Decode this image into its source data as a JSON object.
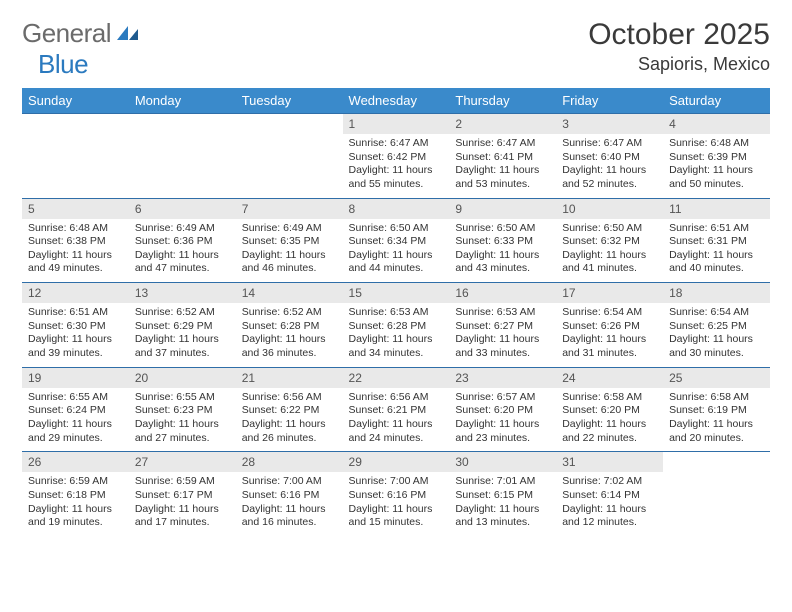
{
  "brand": {
    "textA": "General",
    "textB": "Blue",
    "color_gray": "#6b6b6b",
    "color_blue": "#2b7abf"
  },
  "title": {
    "month": "October 2025",
    "location": "Sapioris, Mexico"
  },
  "colors": {
    "header_bg": "#3a8acb",
    "header_text": "#ffffff",
    "divider": "#2f6ea8",
    "daynum_bg": "#e9e9e9"
  },
  "dayHeaders": [
    "Sunday",
    "Monday",
    "Tuesday",
    "Wednesday",
    "Thursday",
    "Friday",
    "Saturday"
  ],
  "weeks": [
    [
      null,
      null,
      null,
      {
        "n": "1",
        "sunrise": "6:47 AM",
        "sunset": "6:42 PM",
        "daylight": "11 hours and 55 minutes."
      },
      {
        "n": "2",
        "sunrise": "6:47 AM",
        "sunset": "6:41 PM",
        "daylight": "11 hours and 53 minutes."
      },
      {
        "n": "3",
        "sunrise": "6:47 AM",
        "sunset": "6:40 PM",
        "daylight": "11 hours and 52 minutes."
      },
      {
        "n": "4",
        "sunrise": "6:48 AM",
        "sunset": "6:39 PM",
        "daylight": "11 hours and 50 minutes."
      }
    ],
    [
      {
        "n": "5",
        "sunrise": "6:48 AM",
        "sunset": "6:38 PM",
        "daylight": "11 hours and 49 minutes."
      },
      {
        "n": "6",
        "sunrise": "6:49 AM",
        "sunset": "6:36 PM",
        "daylight": "11 hours and 47 minutes."
      },
      {
        "n": "7",
        "sunrise": "6:49 AM",
        "sunset": "6:35 PM",
        "daylight": "11 hours and 46 minutes."
      },
      {
        "n": "8",
        "sunrise": "6:50 AM",
        "sunset": "6:34 PM",
        "daylight": "11 hours and 44 minutes."
      },
      {
        "n": "9",
        "sunrise": "6:50 AM",
        "sunset": "6:33 PM",
        "daylight": "11 hours and 43 minutes."
      },
      {
        "n": "10",
        "sunrise": "6:50 AM",
        "sunset": "6:32 PM",
        "daylight": "11 hours and 41 minutes."
      },
      {
        "n": "11",
        "sunrise": "6:51 AM",
        "sunset": "6:31 PM",
        "daylight": "11 hours and 40 minutes."
      }
    ],
    [
      {
        "n": "12",
        "sunrise": "6:51 AM",
        "sunset": "6:30 PM",
        "daylight": "11 hours and 39 minutes."
      },
      {
        "n": "13",
        "sunrise": "6:52 AM",
        "sunset": "6:29 PM",
        "daylight": "11 hours and 37 minutes."
      },
      {
        "n": "14",
        "sunrise": "6:52 AM",
        "sunset": "6:28 PM",
        "daylight": "11 hours and 36 minutes."
      },
      {
        "n": "15",
        "sunrise": "6:53 AM",
        "sunset": "6:28 PM",
        "daylight": "11 hours and 34 minutes."
      },
      {
        "n": "16",
        "sunrise": "6:53 AM",
        "sunset": "6:27 PM",
        "daylight": "11 hours and 33 minutes."
      },
      {
        "n": "17",
        "sunrise": "6:54 AM",
        "sunset": "6:26 PM",
        "daylight": "11 hours and 31 minutes."
      },
      {
        "n": "18",
        "sunrise": "6:54 AM",
        "sunset": "6:25 PM",
        "daylight": "11 hours and 30 minutes."
      }
    ],
    [
      {
        "n": "19",
        "sunrise": "6:55 AM",
        "sunset": "6:24 PM",
        "daylight": "11 hours and 29 minutes."
      },
      {
        "n": "20",
        "sunrise": "6:55 AM",
        "sunset": "6:23 PM",
        "daylight": "11 hours and 27 minutes."
      },
      {
        "n": "21",
        "sunrise": "6:56 AM",
        "sunset": "6:22 PM",
        "daylight": "11 hours and 26 minutes."
      },
      {
        "n": "22",
        "sunrise": "6:56 AM",
        "sunset": "6:21 PM",
        "daylight": "11 hours and 24 minutes."
      },
      {
        "n": "23",
        "sunrise": "6:57 AM",
        "sunset": "6:20 PM",
        "daylight": "11 hours and 23 minutes."
      },
      {
        "n": "24",
        "sunrise": "6:58 AM",
        "sunset": "6:20 PM",
        "daylight": "11 hours and 22 minutes."
      },
      {
        "n": "25",
        "sunrise": "6:58 AM",
        "sunset": "6:19 PM",
        "daylight": "11 hours and 20 minutes."
      }
    ],
    [
      {
        "n": "26",
        "sunrise": "6:59 AM",
        "sunset": "6:18 PM",
        "daylight": "11 hours and 19 minutes."
      },
      {
        "n": "27",
        "sunrise": "6:59 AM",
        "sunset": "6:17 PM",
        "daylight": "11 hours and 17 minutes."
      },
      {
        "n": "28",
        "sunrise": "7:00 AM",
        "sunset": "6:16 PM",
        "daylight": "11 hours and 16 minutes."
      },
      {
        "n": "29",
        "sunrise": "7:00 AM",
        "sunset": "6:16 PM",
        "daylight": "11 hours and 15 minutes."
      },
      {
        "n": "30",
        "sunrise": "7:01 AM",
        "sunset": "6:15 PM",
        "daylight": "11 hours and 13 minutes."
      },
      {
        "n": "31",
        "sunrise": "7:02 AM",
        "sunset": "6:14 PM",
        "daylight": "11 hours and 12 minutes."
      },
      null
    ]
  ],
  "labels": {
    "sunrise": "Sunrise:",
    "sunset": "Sunset:",
    "daylight": "Daylight:"
  }
}
